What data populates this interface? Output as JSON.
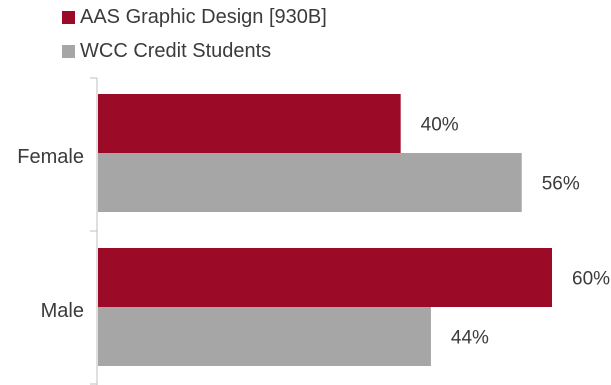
{
  "chart_data": {
    "type": "bar",
    "orientation": "horizontal",
    "categories": [
      "Female",
      "Male"
    ],
    "series": [
      {
        "name": "AAS Graphic Design [930B]",
        "color": "#9b0a26",
        "values": [
          40,
          60
        ],
        "labels": [
          "40%",
          "60%"
        ]
      },
      {
        "name": "WCC Credit Students",
        "color": "#a6a6a6",
        "values": [
          56,
          44
        ],
        "labels": [
          "56%",
          "44%"
        ]
      }
    ],
    "xlim": [
      0,
      60
    ],
    "unit": "%",
    "legend_position": "top-left",
    "grid": false
  }
}
